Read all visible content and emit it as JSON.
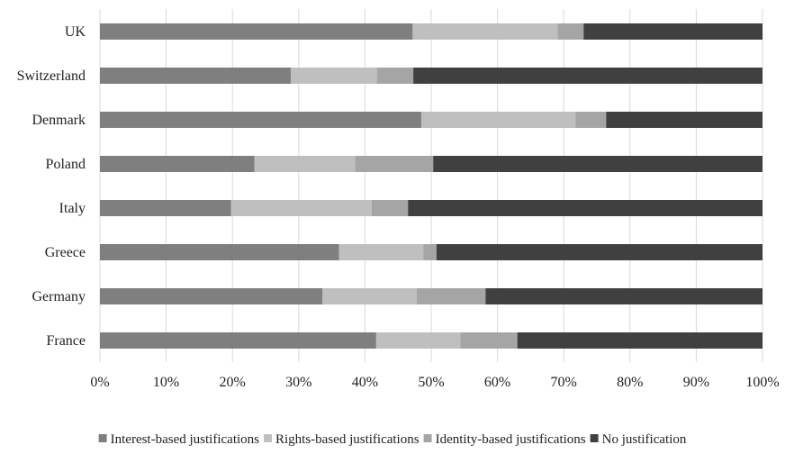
{
  "chart_data": {
    "type": "bar",
    "orientation": "horizontal",
    "stacked": "100%",
    "title": "",
    "xlabel": "",
    "ylabel": "",
    "xlim": [
      0,
      100
    ],
    "x_ticks": [
      "0%",
      "10%",
      "20%",
      "30%",
      "40%",
      "50%",
      "60%",
      "70%",
      "80%",
      "90%",
      "100%"
    ],
    "categories": [
      "UK",
      "Switzerland",
      "Denmark",
      "Poland",
      "Italy",
      "Greece",
      "Germany",
      "France"
    ],
    "series": [
      {
        "name": "Interest-based justifications",
        "color": "#7f7f7f",
        "values": [
          47.2,
          28.8,
          48.5,
          23.3,
          19.8,
          36.1,
          33.6,
          41.7
        ]
      },
      {
        "name": "Rights-based justifications",
        "color": "#bfbfbf",
        "values": [
          21.9,
          13.0,
          23.3,
          15.2,
          21.2,
          12.7,
          14.2,
          12.7
        ]
      },
      {
        "name": "Identity-based justifications",
        "color": "#a5a5a5",
        "values": [
          3.9,
          5.5,
          4.6,
          11.8,
          5.5,
          2.0,
          10.4,
          8.6
        ]
      },
      {
        "name": "No justification",
        "color": "#404040",
        "values": [
          27.0,
          52.7,
          23.6,
          49.7,
          53.5,
          49.2,
          41.8,
          37.0
        ]
      }
    ],
    "grid": "vertical",
    "legend": "bottom"
  }
}
